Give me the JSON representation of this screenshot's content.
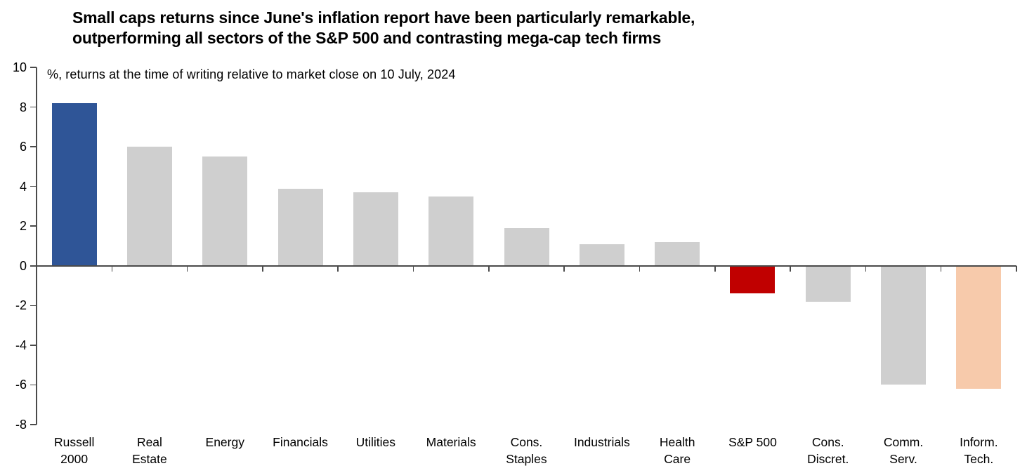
{
  "page": {
    "title_lines": [
      "Small caps returns since June's inflation report have been particularly remarkable,",
      "outperforming all sectors of the S&P 500 and contrasting mega-cap tech firms"
    ]
  },
  "chart_data": {
    "type": "bar",
    "title": "Small caps returns since June's inflation report have been particularly remarkable, outperforming all sectors of the S&P 500 and contrasting mega-cap tech firms",
    "subtitle": "%, returns at the time of writing relative to market close on 10 July, 2024",
    "unit": "%",
    "ylim": [
      -8,
      10
    ],
    "ytick_step": 2,
    "yticks": [
      10,
      8,
      6,
      4,
      2,
      0,
      -2,
      -4,
      -6,
      -8
    ],
    "grid": false,
    "legend": null,
    "categories": [
      "Russell 2000",
      "Real Estate",
      "Energy",
      "Financials",
      "Utilities",
      "Materials",
      "Cons. Staples",
      "Industrials",
      "Health Care",
      "S&P 500",
      "Cons. Discret.",
      "Comm. Serv.",
      "Inform. Tech."
    ],
    "category_label_lines": [
      [
        "Russell",
        "2000"
      ],
      [
        "Real",
        "Estate"
      ],
      [
        "Energy"
      ],
      [
        "Financials"
      ],
      [
        "Utilities"
      ],
      [
        "Materials"
      ],
      [
        "Cons.",
        "Staples"
      ],
      [
        "Industrials"
      ],
      [
        "Health",
        "Care"
      ],
      [
        "S&P 500"
      ],
      [
        "Cons.",
        "Discret."
      ],
      [
        "Comm.",
        "Serv."
      ],
      [
        "Inform.",
        "Tech."
      ]
    ],
    "values": [
      8.2,
      6.0,
      5.5,
      3.9,
      3.7,
      3.5,
      1.9,
      1.1,
      1.2,
      -1.4,
      -1.8,
      -6.0,
      -6.2
    ],
    "bar_colors": [
      "#2F5597",
      "#CFCFCF",
      "#CFCFCF",
      "#CFCFCF",
      "#CFCFCF",
      "#CFCFCF",
      "#CFCFCF",
      "#CFCFCF",
      "#CFCFCF",
      "#C00000",
      "#CFCFCF",
      "#CFCFCF",
      "#F7CAAB"
    ],
    "colors": {
      "highlight_blue": "#2F5597",
      "neutral_gray": "#CFCFCF",
      "highlight_red": "#C00000",
      "highlight_peach": "#F7CAAB",
      "axis": "#4a4a4a",
      "text": "#000000"
    }
  }
}
